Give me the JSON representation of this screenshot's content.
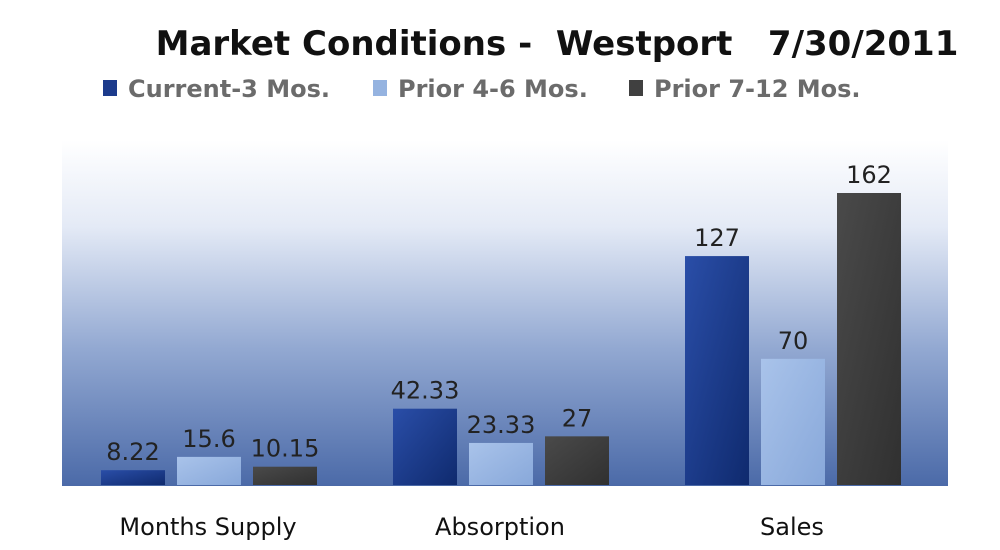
{
  "chart_data": {
    "type": "bar",
    "title": "Market Conditions -  Westport   7/30/2011",
    "categories": [
      "Months Supply",
      "Absorption",
      "Sales"
    ],
    "series": [
      {
        "name": "Current-3 Mos.",
        "color": "#1c3b8c",
        "values": [
          8.22,
          42.33,
          127
        ]
      },
      {
        "name": "Prior 4-6 Mos.",
        "color": "#95b3e0",
        "values": [
          15.6,
          23.33,
          70
        ]
      },
      {
        "name": "Prior 7-12 Mos.",
        "color": "#404040",
        "values": [
          10.15,
          27,
          162
        ]
      }
    ],
    "data_labels": [
      [
        "8.22",
        "42.33",
        "127"
      ],
      [
        "15.6",
        "23.33",
        "70"
      ],
      [
        "10.15",
        "27",
        "162"
      ]
    ],
    "legend_position": "top",
    "grid": false,
    "ylim": [
      0,
      162
    ]
  }
}
